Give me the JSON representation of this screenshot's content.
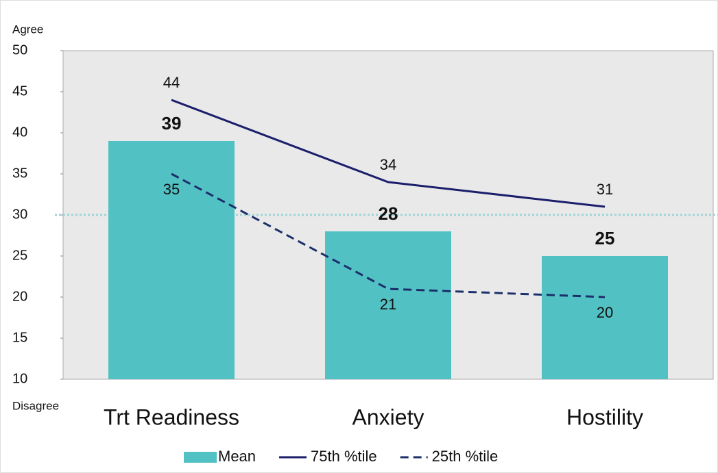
{
  "chart_data": {
    "type": "bar_line",
    "categories": [
      "Trt Readiness",
      "Anxiety",
      "Hostility"
    ],
    "series": [
      {
        "name": "Mean",
        "kind": "bar",
        "color": "#52c1c4",
        "values": [
          39,
          28,
          25
        ]
      },
      {
        "name": "75th %tile",
        "kind": "line",
        "style": "solid",
        "color": "#1b1f6b",
        "values": [
          44,
          34,
          31
        ]
      },
      {
        "name": "25th %tile",
        "kind": "line",
        "style": "dashed",
        "color": "#1b2f6b",
        "values": [
          35,
          21,
          20
        ]
      }
    ],
    "ylim": [
      10,
      50
    ],
    "yticks": [
      10,
      15,
      20,
      25,
      30,
      35,
      40,
      45,
      50
    ],
    "y_top_label": "Agree",
    "y_bottom_label": "Disagree",
    "reference_line": 30,
    "legend": "bottom"
  }
}
